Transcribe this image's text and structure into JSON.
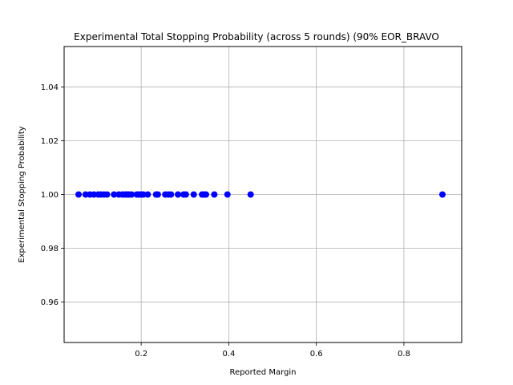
{
  "chart_data": {
    "type": "scatter",
    "title": "Experimental Total Stopping Probability (across 5 rounds) (90% EOR_BRAVO",
    "xlabel": "Reported Margin",
    "ylabel": "Experimental Stopping Probability",
    "xlim": [
      0.024,
      0.932
    ],
    "ylim": [
      0.945,
      1.055
    ],
    "xticks": [
      0.2,
      0.4,
      0.6,
      0.8
    ],
    "xtick_labels": [
      "0.2",
      "0.4",
      "0.6",
      "0.8"
    ],
    "yticks": [
      0.96,
      0.98,
      1.0,
      1.02,
      1.04
    ],
    "ytick_labels": [
      "0.96",
      "0.98",
      "1.00",
      "1.02",
      "1.04"
    ],
    "grid": true,
    "marker_color": "#0000ff",
    "series": [
      {
        "x": [
          0.057,
          0.073,
          0.083,
          0.092,
          0.102,
          0.108,
          0.115,
          0.122,
          0.138,
          0.149,
          0.157,
          0.163,
          0.168,
          0.172,
          0.178,
          0.19,
          0.195,
          0.2,
          0.205,
          0.215,
          0.234,
          0.238,
          0.255,
          0.262,
          0.268,
          0.284,
          0.297,
          0.302,
          0.32,
          0.339,
          0.344,
          0.348,
          0.367,
          0.397,
          0.45,
          0.888
        ],
        "y": [
          1,
          1,
          1,
          1,
          1,
          1,
          1,
          1,
          1,
          1,
          1,
          1,
          1,
          1,
          1,
          1,
          1,
          1,
          1,
          1,
          1,
          1,
          1,
          1,
          1,
          1,
          1,
          1,
          1,
          1,
          1,
          1,
          1,
          1,
          1,
          1
        ]
      }
    ]
  }
}
